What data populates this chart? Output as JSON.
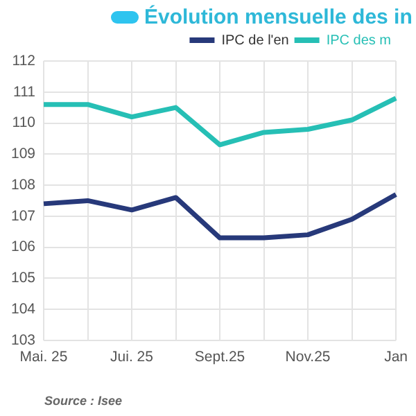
{
  "chart_data": {
    "type": "line",
    "title": "Évolution mensuelle des in",
    "categories": [
      "Mai. 25",
      null,
      "Jui. 25",
      null,
      "Sept.25",
      null,
      "Nov.25",
      null,
      "Jan"
    ],
    "series": [
      {
        "name": "IPC de l'en",
        "color": "#27397a",
        "values": [
          107.4,
          107.5,
          107.2,
          107.6,
          106.3,
          106.3,
          106.4,
          106.9,
          107.7
        ]
      },
      {
        "name": "IPC des m",
        "color": "#26bfb5",
        "values": [
          110.6,
          110.6,
          110.2,
          110.5,
          109.3,
          109.7,
          109.8,
          110.1,
          110.8
        ]
      }
    ],
    "ylim": [
      103,
      112
    ],
    "yticks": [
      103,
      104,
      105,
      106,
      107,
      108,
      109,
      110,
      111,
      112
    ],
    "grid": true,
    "legend": "top right",
    "marker": "none",
    "line_style": "solid",
    "annotations": [
      "Source : Isee"
    ]
  }
}
